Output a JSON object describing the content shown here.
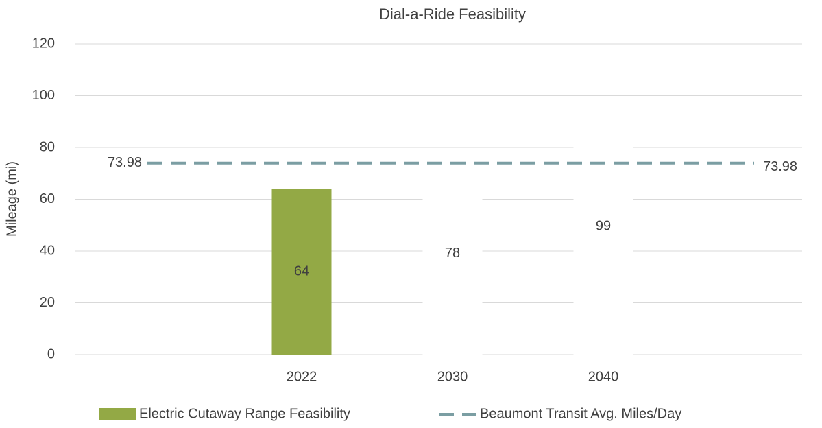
{
  "chart_data": {
    "type": "bar-line",
    "title": "Dial-a-Ride Feasibility",
    "y_label": "Mileage (mi)",
    "categories": [
      null,
      "2022",
      "2030",
      "2040",
      null
    ],
    "ylim": [
      0,
      120
    ],
    "yticks": [
      0,
      20,
      40,
      60,
      80,
      100,
      120
    ],
    "grid": true,
    "legend": "bottom",
    "series": [
      {
        "name": "Electric Cutaway Range Feasibility",
        "type": "bar",
        "color": "#93a945",
        "colors": [
          null,
          "#93a945",
          "#ffffff",
          "#ffffff",
          null
        ],
        "values": [
          null,
          64,
          78,
          99,
          null
        ]
      },
      {
        "name": "Beaumont Transit Avg. Miles/Day",
        "type": "line",
        "color": "#7b9ea3",
        "dashed": true,
        "values": [
          73.98,
          73.98,
          73.98,
          73.98,
          73.98
        ],
        "data_labels": [
          true,
          false,
          false,
          false,
          true
        ]
      }
    ]
  }
}
